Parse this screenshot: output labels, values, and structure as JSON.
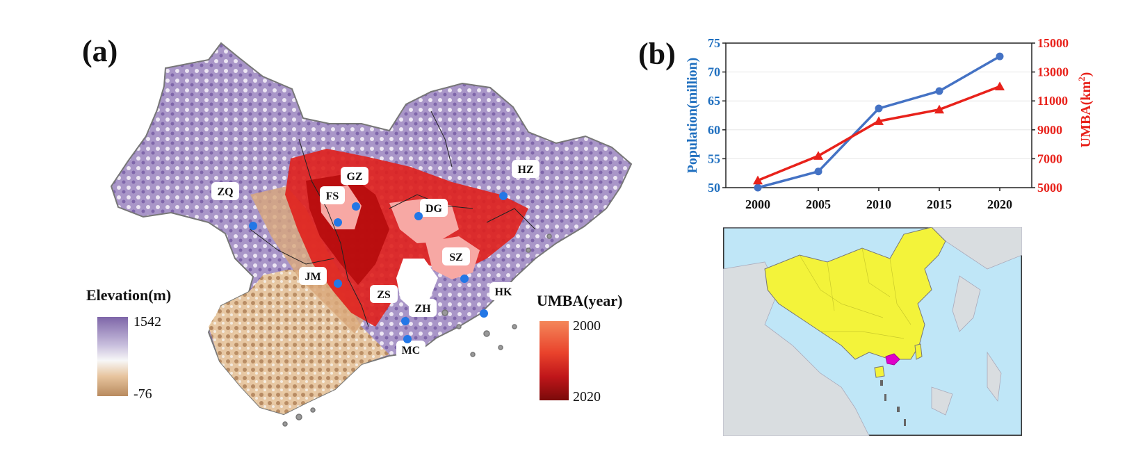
{
  "figure": {
    "panel_a": {
      "label": "(a)",
      "elevation_legend": {
        "title": "Elevation(m)",
        "max": "1542",
        "min": "-76",
        "colors": {
          "top": "#7e66a8",
          "mid": "#f7f7f7",
          "bottom": "#b88a5e"
        }
      },
      "umba_legend": {
        "title": "UMBA(year)",
        "start": "2000",
        "end": "2020",
        "colors": {
          "start": "#f4875a",
          "end": "#7a0a0a"
        }
      },
      "cities": [
        {
          "code": "ZQ"
        },
        {
          "code": "FS"
        },
        {
          "code": "GZ"
        },
        {
          "code": "DG"
        },
        {
          "code": "HZ"
        },
        {
          "code": "JM"
        },
        {
          "code": "ZS"
        },
        {
          "code": "SZ"
        },
        {
          "code": "ZH"
        },
        {
          "code": "HK"
        },
        {
          "code": "MC"
        }
      ],
      "point_color": "#2377e6"
    },
    "panel_b": {
      "label": "(b)",
      "map_colors": {
        "china": "#f3f33a",
        "gba": "#e000c8",
        "ocean": "#bfe6f7",
        "land": "#d9dde0"
      }
    }
  },
  "chart_data": {
    "type": "line",
    "categories": [
      "2000",
      "2005",
      "2010",
      "2015",
      "2020"
    ],
    "x_tick_labels": [
      "2000",
      "2005",
      "2010",
      "2015",
      "2020"
    ],
    "left_axis": {
      "label": "Population(million)",
      "ylim": [
        50,
        75
      ],
      "ticks": [
        "50",
        "55",
        "60",
        "65",
        "70",
        "75"
      ],
      "color": "#1f6fbf"
    },
    "right_axis": {
      "label": "UMBA(km",
      "label_sup": "2",
      "label_end": ")",
      "ylim": [
        5000,
        15000
      ],
      "ticks": [
        "5000",
        "7000",
        "9000",
        "11000",
        "13000",
        "15000"
      ],
      "color": "#e8221b"
    },
    "series": [
      {
        "axis": "left",
        "marker": "circle",
        "color": "#4472c4",
        "values": [
          50.0,
          52.8,
          63.7,
          66.7,
          72.7
        ]
      },
      {
        "axis": "right",
        "marker": "triangle",
        "color": "#e8221b",
        "values": [
          5500,
          7200,
          9600,
          10400,
          12000
        ]
      }
    ],
    "grid": true
  }
}
